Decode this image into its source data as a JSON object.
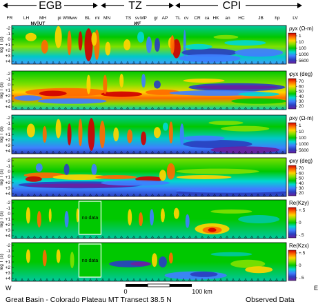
{
  "header": {
    "regions": [
      {
        "label": "EGB",
        "arrow": "both"
      },
      {
        "label": "TZ",
        "arrow": "both"
      },
      {
        "label": "CPI",
        "arrow": "both"
      }
    ],
    "stations_top": [
      "FR",
      "LH",
      "MH",
      "pi",
      "WW",
      "ww",
      "BL",
      "ml",
      "MN",
      "TS",
      "sv",
      "MP",
      "gr",
      "AP",
      "TL",
      "cv",
      "CR",
      "ca",
      "HK",
      "an",
      "HC",
      "JB",
      "hp",
      "LV"
    ],
    "stations_sub": [
      "NV",
      "UT",
      "WF"
    ]
  },
  "chart_data": [
    {
      "type": "heatmap",
      "name": "rho_yx",
      "ylabel": "log T (s)",
      "yticks": [
        "-2",
        "-1",
        "0",
        "+1",
        "+2",
        "+3",
        "+4"
      ],
      "colorbar_title": "ρyx (Ω-m)",
      "colorbar_ticks": [
        "1",
        "10",
        "100",
        "1000",
        "5600"
      ],
      "colorbar_scale": "log",
      "colors": [
        "#d00000",
        "#ff6a00",
        "#ffd400",
        "#7fe000",
        "#00c800",
        "#00d8d0",
        "#3f7fff",
        "#2a3fc0",
        "#6a1fa0"
      ]
    },
    {
      "type": "heatmap",
      "name": "phi_yx",
      "ylabel": "log T (s)",
      "yticks": [
        "-2",
        "-1",
        "0",
        "+1",
        "+2",
        "+3",
        "+4"
      ],
      "colorbar_title": "φyx (deg)",
      "colorbar_ticks": [
        "70",
        "60",
        "50",
        "40",
        "30",
        "20"
      ],
      "colors": [
        "#d00000",
        "#ff6a00",
        "#ffd400",
        "#7fe000",
        "#00c800",
        "#00d8d0",
        "#3f7fff",
        "#2a3fc0",
        "#6a1fa0"
      ]
    },
    {
      "type": "heatmap",
      "name": "rho_xy",
      "ylabel": "log T (s)",
      "yticks": [
        "-2",
        "-1",
        "0",
        "+1",
        "+2",
        "+3",
        "+4"
      ],
      "colorbar_title": "ρxy (Ω-m)",
      "colorbar_ticks": [
        "1",
        "10",
        "100",
        "1000",
        "5600"
      ],
      "colorbar_scale": "log",
      "colors": [
        "#d00000",
        "#ff6a00",
        "#ffd400",
        "#7fe000",
        "#00c800",
        "#00d8d0",
        "#3f7fff",
        "#2a3fc0",
        "#6a1fa0"
      ]
    },
    {
      "type": "heatmap",
      "name": "phi_xy",
      "ylabel": "log T (s)",
      "yticks": [
        "-2",
        "-1",
        "0",
        "+1",
        "+2",
        "+3",
        "+4"
      ],
      "colorbar_title": "φxy (deg)",
      "colorbar_ticks": [
        "70",
        "60",
        "50",
        "40",
        "30",
        "20"
      ],
      "colors": [
        "#d00000",
        "#ff6a00",
        "#ffd400",
        "#7fe000",
        "#00c800",
        "#00d8d0",
        "#3f7fff",
        "#2a3fc0",
        "#6a1fa0"
      ]
    },
    {
      "type": "heatmap",
      "name": "re_kzy",
      "ylabel": "log T (s)",
      "yticks": [
        "-2",
        "-1",
        "0",
        "+1",
        "+2",
        "+3",
        "+4"
      ],
      "colorbar_title": "Re(Kzy)",
      "colorbar_ticks": [
        "+.5",
        "0",
        "-.5"
      ],
      "annotation": "no data",
      "colors": [
        "#d00000",
        "#ff6a00",
        "#ffd400",
        "#7fe000",
        "#00c800",
        "#00d8d0",
        "#3f7fff",
        "#2a3fc0",
        "#6a1fa0"
      ]
    },
    {
      "type": "heatmap",
      "name": "re_kzx",
      "ylabel": "log T (s)",
      "yticks": [
        "-2",
        "-1",
        "0",
        "+1",
        "+2",
        "+3",
        "+4"
      ],
      "colorbar_title": "Re(Kzx)",
      "colorbar_ticks": [
        "+.5",
        "0",
        "-.5"
      ],
      "annotation": "no data",
      "colors": [
        "#d00000",
        "#ff6a00",
        "#ffd400",
        "#7fe000",
        "#00c800",
        "#00d8d0",
        "#3f7fff",
        "#2a3fc0",
        "#6a1fa0"
      ]
    }
  ],
  "scalebar": {
    "start_label": "0",
    "end_label": "100 km"
  },
  "footer": {
    "west": "W",
    "east": "E",
    "title": "Great Basin - Colorado Plateau  MT  Transect  38.5 N",
    "right": "Observed Data"
  }
}
